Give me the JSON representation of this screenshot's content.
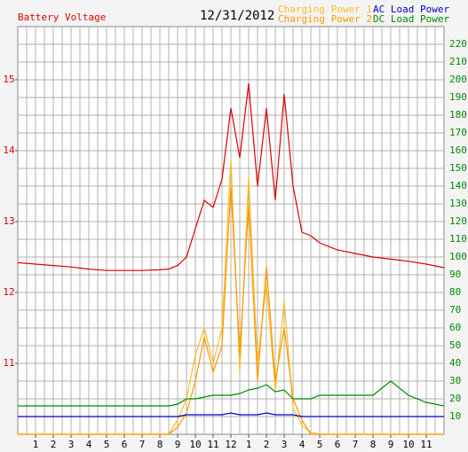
{
  "chart_data": {
    "type": "line",
    "title": "12/31/2012",
    "ylabel": "Battery Voltage",
    "x": [
      0,
      1,
      2,
      3,
      4,
      5,
      6,
      7,
      8,
      8.5,
      9,
      9.5,
      10,
      10.5,
      11,
      11.5,
      12,
      12.5,
      13,
      13.5,
      14,
      14.5,
      15,
      15.5,
      16,
      16.5,
      17,
      18,
      19,
      20,
      21,
      22,
      23,
      24
    ],
    "xlim": [
      0,
      24
    ],
    "xticks": [
      1,
      2,
      3,
      4,
      5,
      6,
      7,
      8,
      9,
      10,
      11,
      12,
      {
        "value": 13,
        "label": "1"
      },
      {
        "value": 14,
        "label": "2"
      },
      {
        "value": 15,
        "label": "3"
      },
      {
        "value": 16,
        "label": "4"
      },
      {
        "value": 17,
        "label": "5"
      },
      {
        "value": 18,
        "label": "6"
      },
      {
        "value": 19,
        "label": "7"
      },
      {
        "value": 20,
        "label": "8"
      },
      {
        "value": 21,
        "label": "9"
      },
      {
        "value": 22,
        "label": "10"
      },
      {
        "value": 23,
        "label": "11"
      }
    ],
    "ylim": [
      10,
      15.75
    ],
    "yticks": [
      11,
      12,
      13,
      14,
      15
    ],
    "y2lim": [
      0,
      230
    ],
    "y2ticks": [
      10,
      20,
      30,
      40,
      50,
      60,
      70,
      80,
      90,
      100,
      110,
      120,
      130,
      140,
      150,
      160,
      170,
      180,
      190,
      200,
      210,
      220
    ],
    "grid": true,
    "series": [
      {
        "name": "Battery Voltage",
        "color": "#dd0000",
        "axis": "y",
        "values": [
          12.42,
          12.4,
          12.38,
          12.36,
          12.33,
          12.31,
          12.31,
          12.31,
          12.32,
          12.33,
          12.38,
          12.5,
          12.9,
          13.3,
          13.2,
          13.6,
          14.6,
          13.9,
          14.95,
          13.5,
          14.6,
          13.3,
          14.8,
          13.5,
          12.85,
          12.8,
          12.7,
          12.6,
          12.55,
          12.5,
          12.47,
          12.44,
          12.4,
          12.35
        ]
      },
      {
        "name": "Charging Power 1",
        "color": "#ffbb22",
        "axis": "y2",
        "values": [
          0,
          0,
          0,
          0,
          0,
          0,
          0,
          0,
          0,
          0,
          8,
          20,
          45,
          60,
          40,
          60,
          155,
          35,
          145,
          40,
          85,
          25,
          75,
          15,
          5,
          1,
          0,
          0,
          0,
          0,
          0,
          0,
          0,
          0
        ]
      },
      {
        "name": "Charging Power 2",
        "color": "#ff9900",
        "axis": "y2",
        "values": [
          0,
          0,
          0,
          0,
          0,
          0,
          0,
          0,
          0,
          0,
          4,
          12,
          30,
          55,
          35,
          50,
          140,
          45,
          130,
          30,
          95,
          30,
          60,
          20,
          8,
          0,
          0,
          0,
          0,
          0,
          0,
          0,
          0,
          0
        ]
      },
      {
        "name": "AC Load Power",
        "color": "#0000cc",
        "axis": "y2",
        "values": [
          10,
          10,
          10,
          10,
          10,
          10,
          10,
          10,
          10,
          10,
          10,
          11,
          11,
          11,
          11,
          11,
          12,
          11,
          11,
          11,
          12,
          11,
          11,
          11,
          10,
          10,
          10,
          10,
          10,
          10,
          10,
          10,
          10,
          10
        ]
      },
      {
        "name": "DC Load Power",
        "color": "#008800",
        "axis": "y2",
        "values": [
          16,
          16,
          16,
          16,
          16,
          16,
          16,
          16,
          16,
          16,
          17,
          20,
          20,
          21,
          22,
          22,
          22,
          23,
          25,
          26,
          28,
          24,
          25,
          20,
          20,
          20,
          22,
          22,
          22,
          22,
          30,
          22,
          18,
          16
        ]
      }
    ]
  }
}
